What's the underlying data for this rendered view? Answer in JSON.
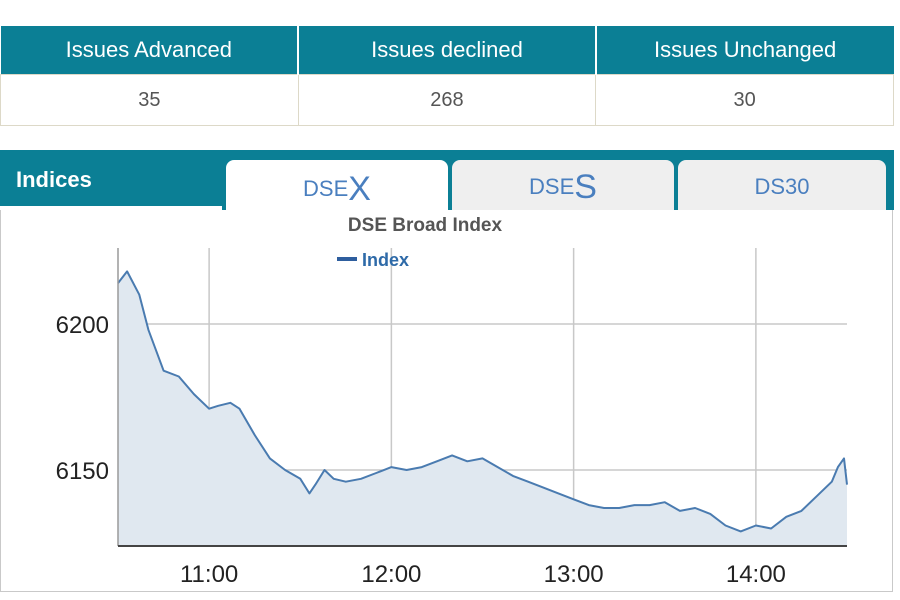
{
  "summary": {
    "headers": [
      "Issues Advanced",
      "Issues declined",
      "Issues Unchanged"
    ],
    "values": [
      "35",
      "268",
      "30"
    ]
  },
  "indices": {
    "label": "Indices",
    "tabs": [
      {
        "prefix": "DSE",
        "suffix": "X",
        "active": true
      },
      {
        "prefix": "DSE",
        "suffix": "S",
        "active": false
      },
      {
        "prefix": "DS30",
        "suffix": "",
        "active": false
      }
    ]
  },
  "colors": {
    "header_bg": "#0b7f95",
    "line": "#4a7bb0",
    "area": "#e0e8f0",
    "tab_text": "#4a7fbf"
  },
  "chart_data": {
    "type": "area",
    "title": "DSE Broad Index",
    "legend": "top-center",
    "grid": true,
    "xlabel": "",
    "ylabel": "",
    "x_ticks": [
      "11:00",
      "12:00",
      "13:00",
      "14:00"
    ],
    "y_ticks": [
      6150,
      6200
    ],
    "xlim": [
      "10:30",
      "14:30"
    ],
    "ylim": [
      6124,
      6226
    ],
    "series": [
      {
        "name": "Index",
        "x": [
          "10:30",
          "10:33",
          "10:37",
          "10:40",
          "10:45",
          "10:50",
          "10:55",
          "11:00",
          "11:03",
          "11:07",
          "11:10",
          "11:15",
          "11:20",
          "11:25",
          "11:30",
          "11:33",
          "11:35",
          "11:38",
          "11:41",
          "11:45",
          "11:50",
          "11:55",
          "12:00",
          "12:05",
          "12:10",
          "12:15",
          "12:20",
          "12:25",
          "12:30",
          "12:35",
          "12:40",
          "12:45",
          "12:50",
          "12:55",
          "13:00",
          "13:05",
          "13:10",
          "13:15",
          "13:20",
          "13:25",
          "13:30",
          "13:35",
          "13:40",
          "13:45",
          "13:50",
          "13:55",
          "14:00",
          "14:05",
          "14:10",
          "14:15",
          "14:20",
          "14:25",
          "14:27",
          "14:29",
          "14:30"
        ],
        "values": [
          6214,
          6218,
          6210,
          6198,
          6184,
          6182,
          6176,
          6171,
          6172,
          6173,
          6171,
          6162,
          6154,
          6150,
          6147,
          6142,
          6145,
          6150,
          6147,
          6146,
          6147,
          6149,
          6151,
          6150,
          6151,
          6153,
          6155,
          6153,
          6154,
          6151,
          6148,
          6146,
          6144,
          6142,
          6140,
          6138,
          6137,
          6137,
          6138,
          6138,
          6139,
          6136,
          6137,
          6135,
          6131,
          6129,
          6131,
          6130,
          6134,
          6136,
          6141,
          6146,
          6151,
          6154,
          6145
        ]
      }
    ]
  }
}
